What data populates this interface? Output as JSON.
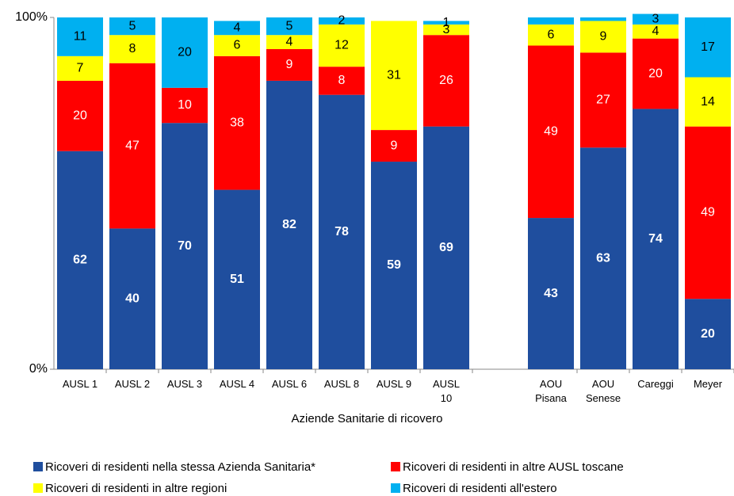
{
  "chart_data": {
    "type": "stacked-bar",
    "x_label": "Aziende Sanitarie di ricovero",
    "categories": [
      "AUSL 1",
      "AUSL 2",
      "AUSL 3",
      "AUSL 4",
      "AUSL 6",
      "AUSL 8",
      "AUSL 9",
      "AUSL 10",
      null,
      "AOU Pisana",
      "AOU Senese",
      "Careggi",
      "Meyer"
    ],
    "ylim": [
      0,
      100
    ],
    "yticks": [
      {
        "value": 0,
        "label": "0%"
      },
      {
        "value": 100,
        "label": "100%"
      }
    ],
    "series": [
      {
        "name": "Ricoveri di residenti nella stessa Azienda Sanitaria*",
        "color": "#1f4e9e",
        "values": [
          62,
          40,
          70,
          51,
          82,
          78,
          59,
          69,
          null,
          43,
          63,
          74,
          20
        ]
      },
      {
        "name": "Ricoveri di residenti in altre AUSL toscane",
        "color": "#ff0000",
        "values": [
          20,
          47,
          10,
          38,
          9,
          8,
          9,
          26,
          null,
          49,
          27,
          20,
          49
        ]
      },
      {
        "name": "Ricoveri di residenti in altre regioni",
        "color": "#ffff00",
        "values": [
          7,
          8,
          0,
          6,
          4,
          12,
          31,
          3,
          null,
          6,
          9,
          4,
          14
        ],
        "value_labels": [
          "7",
          "8",
          null,
          "6",
          "4",
          "12",
          "31",
          "3",
          null,
          "6",
          "9",
          "4",
          "14"
        ]
      },
      {
        "name": "Ricoveri di residenti all'estero",
        "color": "#00b0f0",
        "values": [
          11,
          5,
          20,
          4,
          5,
          2,
          0,
          1,
          null,
          2,
          1,
          3,
          17
        ],
        "value_labels": [
          "11",
          "5",
          "20",
          "4",
          "5",
          "2",
          null,
          "1",
          null,
          null,
          null,
          "3",
          "17"
        ]
      }
    ]
  }
}
